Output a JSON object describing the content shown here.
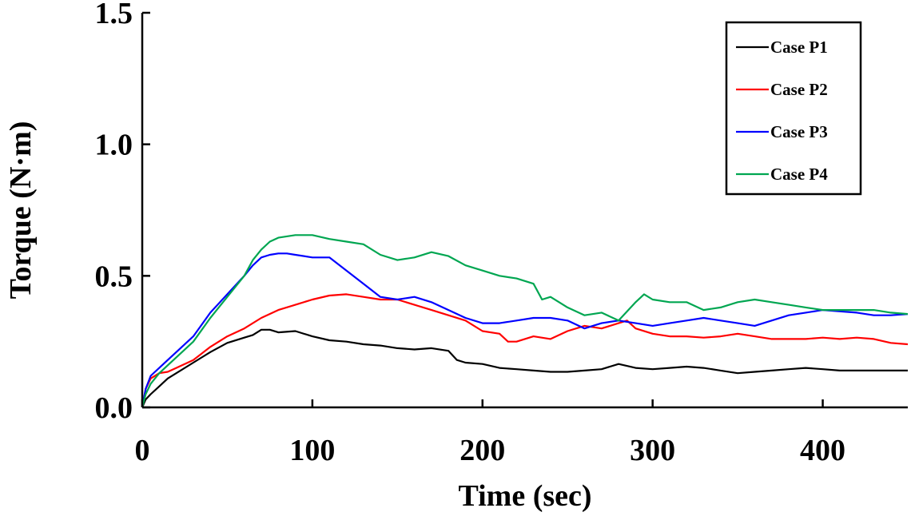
{
  "chart_data": {
    "type": "line",
    "title": "",
    "xlabel": "Time (sec)",
    "ylabel": "Torque (N·m)",
    "xlim": [
      0,
      450
    ],
    "ylim": [
      0,
      1.5
    ],
    "x_ticks": [
      0,
      100,
      200,
      300,
      400
    ],
    "x_tick_labels": [
      "0",
      "100",
      "200",
      "300",
      "400"
    ],
    "y_ticks": [
      0,
      0.5,
      1.0,
      1.5
    ],
    "y_tick_labels": [
      "0.0",
      "0.5",
      "1.0",
      "1.5"
    ],
    "grid": false,
    "legend_position": "top-right",
    "series": [
      {
        "name": "Case P1",
        "color": "#000000",
        "x": [
          0,
          2,
          5,
          10,
          15,
          20,
          30,
          40,
          50,
          60,
          65,
          70,
          75,
          80,
          90,
          100,
          110,
          120,
          130,
          140,
          150,
          160,
          170,
          180,
          185,
          190,
          200,
          210,
          220,
          230,
          240,
          250,
          260,
          270,
          280,
          290,
          300,
          310,
          320,
          330,
          340,
          350,
          360,
          370,
          380,
          390,
          400,
          410,
          420,
          430,
          440,
          450
        ],
        "y": [
          0.0,
          0.03,
          0.05,
          0.08,
          0.11,
          0.13,
          0.17,
          0.21,
          0.245,
          0.265,
          0.275,
          0.295,
          0.295,
          0.285,
          0.29,
          0.27,
          0.255,
          0.25,
          0.24,
          0.235,
          0.225,
          0.22,
          0.225,
          0.215,
          0.18,
          0.17,
          0.165,
          0.15,
          0.145,
          0.14,
          0.135,
          0.135,
          0.14,
          0.145,
          0.165,
          0.15,
          0.145,
          0.15,
          0.155,
          0.15,
          0.14,
          0.13,
          0.135,
          0.14,
          0.145,
          0.15,
          0.145,
          0.14,
          0.14,
          0.14,
          0.14,
          0.14
        ]
      },
      {
        "name": "Case P2",
        "color": "#ff0000",
        "x": [
          0,
          2,
          5,
          10,
          15,
          20,
          30,
          40,
          50,
          60,
          70,
          80,
          90,
          100,
          110,
          120,
          130,
          140,
          150,
          160,
          170,
          180,
          190,
          200,
          210,
          215,
          220,
          230,
          240,
          250,
          260,
          270,
          280,
          285,
          290,
          300,
          310,
          320,
          330,
          340,
          350,
          360,
          370,
          380,
          390,
          400,
          410,
          420,
          430,
          440,
          450
        ],
        "y": [
          0.0,
          0.07,
          0.11,
          0.13,
          0.135,
          0.15,
          0.18,
          0.23,
          0.27,
          0.3,
          0.34,
          0.37,
          0.39,
          0.41,
          0.425,
          0.43,
          0.42,
          0.41,
          0.41,
          0.39,
          0.37,
          0.35,
          0.33,
          0.29,
          0.28,
          0.25,
          0.25,
          0.27,
          0.26,
          0.29,
          0.31,
          0.3,
          0.32,
          0.33,
          0.3,
          0.28,
          0.27,
          0.27,
          0.265,
          0.27,
          0.28,
          0.27,
          0.26,
          0.26,
          0.26,
          0.265,
          0.26,
          0.265,
          0.26,
          0.245,
          0.24
        ]
      },
      {
        "name": "Case P3",
        "color": "#0000ff",
        "x": [
          0,
          2,
          5,
          10,
          15,
          20,
          30,
          40,
          50,
          60,
          65,
          70,
          75,
          80,
          85,
          90,
          100,
          110,
          120,
          130,
          140,
          150,
          160,
          170,
          180,
          190,
          200,
          210,
          220,
          230,
          240,
          250,
          260,
          270,
          280,
          290,
          300,
          310,
          320,
          330,
          340,
          350,
          360,
          370,
          380,
          390,
          400,
          410,
          420,
          430,
          440,
          450
        ],
        "y": [
          0.0,
          0.07,
          0.12,
          0.15,
          0.18,
          0.21,
          0.27,
          0.36,
          0.43,
          0.5,
          0.54,
          0.57,
          0.58,
          0.585,
          0.585,
          0.58,
          0.57,
          0.57,
          0.52,
          0.47,
          0.42,
          0.41,
          0.42,
          0.4,
          0.37,
          0.34,
          0.32,
          0.32,
          0.33,
          0.34,
          0.34,
          0.33,
          0.3,
          0.32,
          0.33,
          0.32,
          0.31,
          0.32,
          0.33,
          0.34,
          0.33,
          0.32,
          0.31,
          0.33,
          0.35,
          0.36,
          0.37,
          0.365,
          0.36,
          0.35,
          0.35,
          0.355
        ]
      },
      {
        "name": "Case P4",
        "color": "#00a651",
        "x": [
          0,
          2,
          5,
          10,
          15,
          20,
          30,
          40,
          50,
          60,
          65,
          70,
          75,
          80,
          90,
          100,
          110,
          120,
          130,
          140,
          150,
          160,
          170,
          180,
          190,
          200,
          210,
          220,
          230,
          235,
          240,
          250,
          260,
          270,
          280,
          290,
          295,
          300,
          310,
          320,
          330,
          340,
          350,
          360,
          370,
          380,
          390,
          400,
          410,
          420,
          430,
          440,
          450
        ],
        "y": [
          0.0,
          0.05,
          0.09,
          0.13,
          0.16,
          0.19,
          0.25,
          0.34,
          0.42,
          0.5,
          0.56,
          0.6,
          0.63,
          0.645,
          0.655,
          0.655,
          0.64,
          0.63,
          0.62,
          0.58,
          0.56,
          0.57,
          0.59,
          0.575,
          0.54,
          0.52,
          0.5,
          0.49,
          0.47,
          0.41,
          0.42,
          0.38,
          0.35,
          0.36,
          0.33,
          0.4,
          0.43,
          0.41,
          0.4,
          0.4,
          0.37,
          0.38,
          0.4,
          0.41,
          0.4,
          0.39,
          0.38,
          0.37,
          0.37,
          0.37,
          0.37,
          0.36,
          0.355
        ]
      }
    ]
  }
}
